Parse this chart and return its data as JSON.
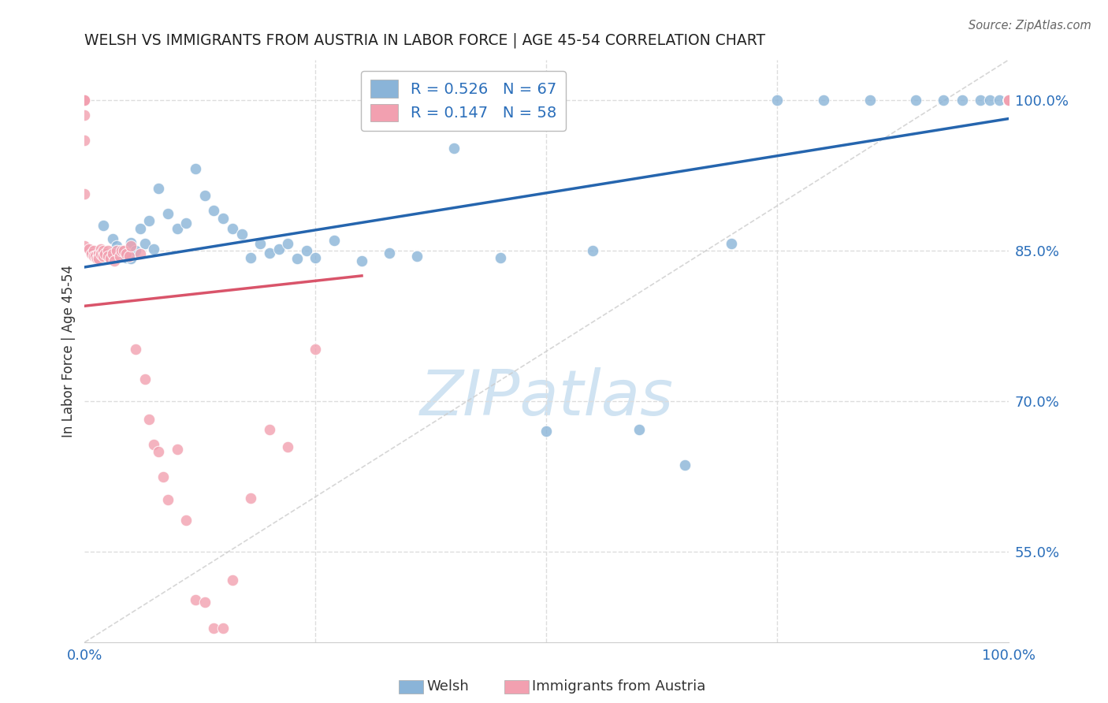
{
  "title": "WELSH VS IMMIGRANTS FROM AUSTRIA IN LABOR FORCE | AGE 45-54 CORRELATION CHART",
  "source": "Source: ZipAtlas.com",
  "ylabel": "In Labor Force | Age 45-54",
  "xlim": [
    0.0,
    1.0
  ],
  "ylim": [
    0.46,
    1.04
  ],
  "yticks": [
    0.55,
    0.7,
    0.85,
    1.0
  ],
  "ytick_labels": [
    "55.0%",
    "70.0%",
    "85.0%",
    "100.0%"
  ],
  "blue_R": 0.526,
  "blue_N": 67,
  "pink_R": 0.147,
  "pink_N": 58,
  "blue_color": "#8ab4d8",
  "pink_color": "#f2a0b0",
  "blue_line_color": "#2565ae",
  "pink_line_color": "#d9546a",
  "background_color": "#ffffff",
  "grid_color": "#dddddd",
  "watermark_color": "#c8dff0",
  "blue_scatter_x": [
    0.02,
    0.03,
    0.035,
    0.04,
    0.045,
    0.05,
    0.05,
    0.055,
    0.06,
    0.065,
    0.07,
    0.075,
    0.08,
    0.09,
    0.1,
    0.11,
    0.12,
    0.13,
    0.14,
    0.15,
    0.16,
    0.17,
    0.18,
    0.19,
    0.2,
    0.21,
    0.22,
    0.23,
    0.24,
    0.25,
    0.27,
    0.3,
    0.33,
    0.36,
    0.4,
    0.45,
    0.5,
    0.55,
    0.6,
    0.65,
    0.7,
    0.75,
    0.8,
    0.85,
    0.9,
    0.93,
    0.95,
    0.97,
    0.98,
    0.99,
    1.0,
    1.0,
    1.0,
    1.0,
    1.0,
    1.0,
    1.0,
    1.0,
    1.0,
    1.0,
    1.0,
    1.0,
    1.0,
    1.0,
    1.0,
    1.0,
    1.0
  ],
  "blue_scatter_y": [
    0.875,
    0.862,
    0.855,
    0.848,
    0.843,
    0.858,
    0.842,
    0.85,
    0.872,
    0.857,
    0.88,
    0.852,
    0.912,
    0.887,
    0.872,
    0.878,
    0.932,
    0.905,
    0.89,
    0.882,
    0.872,
    0.867,
    0.843,
    0.857,
    0.848,
    0.852,
    0.857,
    0.842,
    0.85,
    0.843,
    0.86,
    0.84,
    0.848,
    0.845,
    0.952,
    0.843,
    0.67,
    0.85,
    0.672,
    0.637,
    0.857,
    1.0,
    1.0,
    1.0,
    1.0,
    1.0,
    1.0,
    1.0,
    1.0,
    1.0,
    1.0,
    1.0,
    1.0,
    1.0,
    1.0,
    1.0,
    1.0,
    1.0,
    1.0,
    1.0,
    1.0,
    1.0,
    1.0,
    1.0,
    1.0,
    1.0,
    1.0
  ],
  "pink_scatter_x": [
    0.0,
    0.0,
    0.0,
    0.0,
    0.0,
    0.0,
    0.0,
    0.0,
    0.0,
    0.0,
    0.005,
    0.007,
    0.01,
    0.01,
    0.012,
    0.013,
    0.015,
    0.015,
    0.018,
    0.018,
    0.02,
    0.02,
    0.022,
    0.025,
    0.025,
    0.028,
    0.03,
    0.032,
    0.035,
    0.038,
    0.04,
    0.042,
    0.045,
    0.048,
    0.05,
    0.055,
    0.06,
    0.065,
    0.07,
    0.075,
    0.08,
    0.085,
    0.09,
    0.1,
    0.11,
    0.12,
    0.13,
    0.14,
    0.15,
    0.16,
    0.18,
    0.2,
    0.22,
    0.25,
    1.0,
    1.0,
    1.0,
    1.0
  ],
  "pink_scatter_y": [
    1.0,
    1.0,
    1.0,
    1.0,
    1.0,
    1.0,
    0.985,
    0.96,
    0.907,
    0.855,
    0.852,
    0.847,
    0.85,
    0.845,
    0.845,
    0.842,
    0.847,
    0.842,
    0.852,
    0.847,
    0.85,
    0.845,
    0.847,
    0.85,
    0.845,
    0.842,
    0.847,
    0.84,
    0.85,
    0.845,
    0.85,
    0.85,
    0.847,
    0.845,
    0.855,
    0.752,
    0.847,
    0.722,
    0.682,
    0.657,
    0.65,
    0.625,
    0.602,
    0.652,
    0.582,
    0.502,
    0.5,
    0.474,
    0.474,
    0.522,
    0.604,
    0.672,
    0.655,
    0.752,
    1.0,
    1.0,
    1.0,
    1.0
  ]
}
